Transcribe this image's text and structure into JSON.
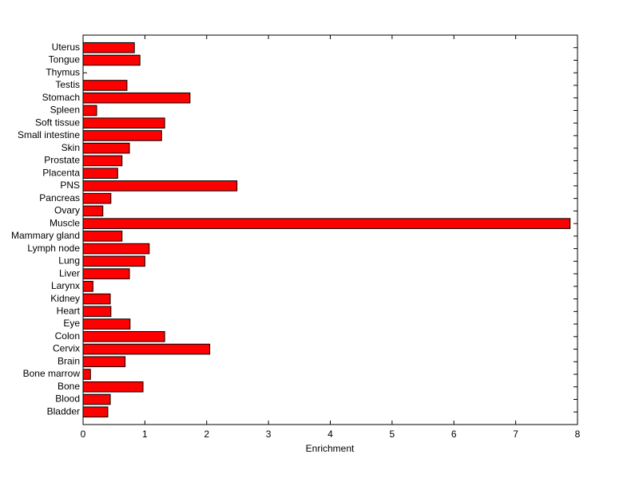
{
  "chart_data": {
    "type": "barh",
    "xlabel": "Enrichment",
    "categories": [
      "Bladder",
      "Blood",
      "Bone",
      "Bone marrow",
      "Brain",
      "Cervix",
      "Colon",
      "Eye",
      "Heart",
      "Kidney",
      "Larynx",
      "Liver",
      "Lung",
      "Lymph node",
      "Mammary gland",
      "Muscle",
      "Ovary",
      "Pancreas",
      "PNS",
      "Placenta",
      "Prostate",
      "Skin",
      "Small intestine",
      "Soft tissue",
      "Spleen",
      "Stomach",
      "Testis",
      "Thymus",
      "Tongue",
      "Uterus"
    ],
    "values": [
      0.4,
      0.44,
      0.97,
      0.12,
      0.68,
      2.05,
      1.32,
      0.76,
      0.45,
      0.44,
      0.16,
      0.75,
      1.0,
      1.07,
      0.63,
      7.88,
      0.32,
      0.45,
      2.49,
      0.56,
      0.63,
      0.75,
      1.27,
      1.32,
      0.22,
      1.73,
      0.71,
      0,
      0.92,
      0.83
    ],
    "color": "#ff0000",
    "xlim": [
      0,
      8
    ],
    "xticks": [
      0,
      1,
      2,
      3,
      4,
      5,
      6,
      7,
      8
    ]
  }
}
